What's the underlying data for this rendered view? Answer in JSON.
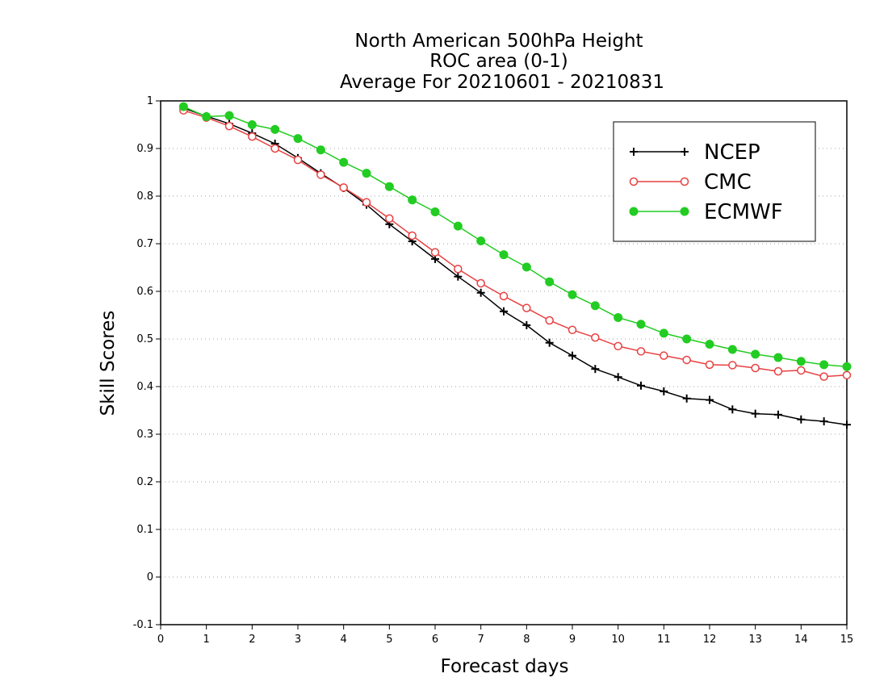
{
  "chart_data": {
    "type": "line",
    "title": [
      "North American 500hPa Height",
      "ROC area (0-1)",
      "Average For 20210601 - 20210831"
    ],
    "xlabel": "Forecast days",
    "ylabel": "Skill Scores",
    "xlim": [
      0,
      15
    ],
    "ylim": [
      -0.1,
      1
    ],
    "x_ticks": [
      0,
      1,
      2,
      3,
      4,
      5,
      6,
      7,
      8,
      9,
      10,
      11,
      12,
      13,
      14,
      15
    ],
    "y_ticks": [
      -0.1,
      0,
      0.1,
      0.2,
      0.3,
      0.4,
      0.5,
      0.6,
      0.7,
      0.8,
      0.9,
      1
    ],
    "y_tick_labels": [
      "-0.1",
      "0",
      "0.1",
      "0.2",
      "0.3",
      "0.4",
      "0.5",
      "0.6",
      "0.7",
      "0.8",
      "0.9",
      "1"
    ],
    "grid": "horizontal dotted",
    "legend_position": "top-right",
    "x": [
      0.5,
      1,
      1.5,
      2,
      2.5,
      3,
      3.5,
      4,
      4.5,
      5,
      5.5,
      6,
      6.5,
      7,
      7.5,
      8,
      8.5,
      9,
      9.5,
      10,
      10.5,
      11,
      11.5,
      12,
      12.5,
      13,
      13.5,
      14,
      14.5,
      15
    ],
    "series": [
      {
        "name": "NCEP",
        "color": "#000000",
        "marker": "plus",
        "values": [
          0.985,
          0.968,
          0.952,
          0.932,
          0.91,
          0.88,
          0.848,
          0.817,
          0.782,
          0.741,
          0.705,
          0.668,
          0.631,
          0.597,
          0.558,
          0.529,
          0.492,
          0.465,
          0.437,
          0.42,
          0.402,
          0.39,
          0.375,
          0.372,
          0.352,
          0.343,
          0.341,
          0.331,
          0.327,
          0.32
        ]
      },
      {
        "name": "CMC",
        "color": "#e84040",
        "marker": "open-circle",
        "values": [
          0.98,
          0.965,
          0.947,
          0.925,
          0.9,
          0.876,
          0.845,
          0.818,
          0.787,
          0.753,
          0.717,
          0.682,
          0.647,
          0.617,
          0.59,
          0.565,
          0.539,
          0.519,
          0.503,
          0.485,
          0.474,
          0.465,
          0.456,
          0.446,
          0.445,
          0.439,
          0.432,
          0.434,
          0.421,
          0.424
        ]
      },
      {
        "name": "ECMWF",
        "color": "#22cc22",
        "marker": "filled-circle",
        "values": [
          0.988,
          0.967,
          0.969,
          0.95,
          0.94,
          0.921,
          0.897,
          0.871,
          0.848,
          0.82,
          0.792,
          0.767,
          0.737,
          0.706,
          0.677,
          0.651,
          0.62,
          0.593,
          0.57,
          0.545,
          0.531,
          0.512,
          0.5,
          0.489,
          0.478,
          0.468,
          0.461,
          0.453,
          0.446,
          0.442
        ]
      }
    ]
  }
}
